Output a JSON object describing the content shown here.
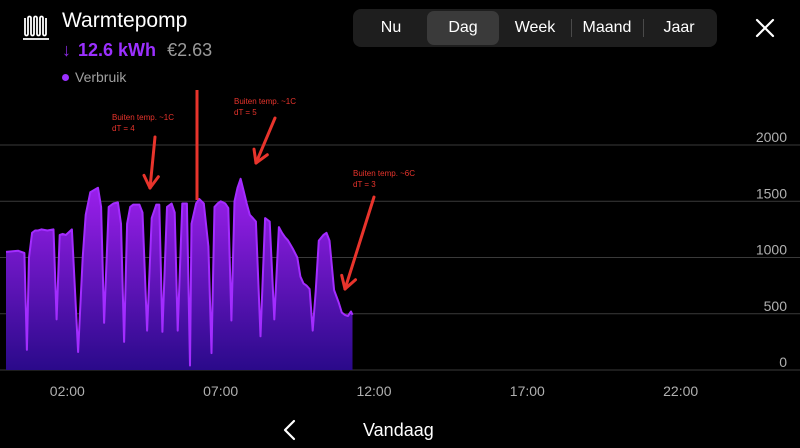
{
  "header": {
    "title": "Warmtepomp",
    "usage_arrow": "↓",
    "usage_kwh": "12.6 kWh",
    "usage_cost": "€2.63",
    "legend_label": "Verbruik",
    "icon": "heat-pump-icon"
  },
  "tabs": [
    {
      "label": "Nu",
      "active": false
    },
    {
      "label": "Dag",
      "active": true
    },
    {
      "label": "Week",
      "active": false
    },
    {
      "label": "Maand",
      "active": false
    },
    {
      "label": "Jaar",
      "active": false
    }
  ],
  "footer": {
    "label": "Vandaag",
    "back_icon": "chevron-left-icon"
  },
  "colors": {
    "accent": "#9b30ff",
    "fill_bottom": "#2a0a8a",
    "annotation": "#e8342c"
  },
  "chart_data": {
    "type": "area",
    "x_unit": "hour of day",
    "ylim": [
      0,
      2000
    ],
    "yticks": [
      0,
      500,
      1000,
      1500,
      2000
    ],
    "xlim": [
      0,
      24
    ],
    "xticks": [
      2,
      7,
      12,
      17,
      22
    ],
    "xtick_labels": [
      "02:00",
      "07:00",
      "12:00",
      "17:00",
      "22:00"
    ],
    "grid": true,
    "y_axis_position": "right",
    "series": [
      {
        "name": "Verbruik",
        "x": [
          0.0,
          0.4,
          0.6,
          0.68,
          0.75,
          0.85,
          0.95,
          1.0,
          1.05,
          1.15,
          1.35,
          1.55,
          1.65,
          1.75,
          1.85,
          1.95,
          2.15,
          2.35,
          2.5,
          2.6,
          2.75,
          3.0,
          3.1,
          3.2,
          3.35,
          3.5,
          3.65,
          3.75,
          3.85,
          3.95,
          4.05,
          4.15,
          4.35,
          4.45,
          4.6,
          4.75,
          4.9,
          5.0,
          5.1,
          5.25,
          5.4,
          5.5,
          5.6,
          5.75,
          5.9,
          6.0,
          6.05,
          6.2,
          6.3,
          6.45,
          6.6,
          6.7,
          6.8,
          6.9,
          7.0,
          7.15,
          7.25,
          7.35,
          7.45,
          7.55,
          7.65,
          7.75,
          7.85,
          7.95,
          8.05,
          8.15,
          8.3,
          8.45,
          8.6,
          8.75,
          8.9,
          9.0,
          9.1,
          9.2,
          9.35,
          9.5,
          9.6,
          9.7,
          9.8,
          9.9,
          10.0,
          10.1,
          10.2,
          10.35,
          10.45,
          10.55,
          10.7,
          10.85,
          10.95,
          11.05,
          11.15,
          11.25,
          11.3
        ],
        "values": [
          1050,
          1060,
          1040,
          180,
          1000,
          1220,
          1240,
          1240,
          1240,
          1250,
          1240,
          1250,
          450,
          1200,
          1210,
          1200,
          1250,
          160,
          1000,
          1380,
          1580,
          1620,
          1450,
          420,
          1450,
          1480,
          1490,
          1300,
          250,
          1300,
          1450,
          1470,
          1470,
          1400,
          350,
          1350,
          1470,
          1470,
          340,
          1450,
          1480,
          1400,
          350,
          1480,
          1480,
          40,
          1300,
          1480,
          1520,
          1480,
          1100,
          150,
          1450,
          1480,
          1500,
          1480,
          1440,
          440,
          1500,
          1620,
          1700,
          1590,
          1480,
          1380,
          1350,
          1320,
          300,
          1350,
          1320,
          450,
          1270,
          1220,
          1180,
          1150,
          1080,
          1000,
          830,
          770,
          750,
          720,
          350,
          700,
          1150,
          1200,
          1220,
          1150,
          710,
          600,
          510,
          490,
          480,
          520,
          490
        ]
      }
    ],
    "annotations": [
      {
        "lines": [
          "Buiten temp. ~1C",
          "dT = 4"
        ]
      },
      {
        "lines": [
          "Buiten temp. ~1C",
          "dT = 5"
        ]
      },
      {
        "lines": [
          "Buiten temp. ~6C",
          "dT = 3"
        ]
      }
    ]
  }
}
